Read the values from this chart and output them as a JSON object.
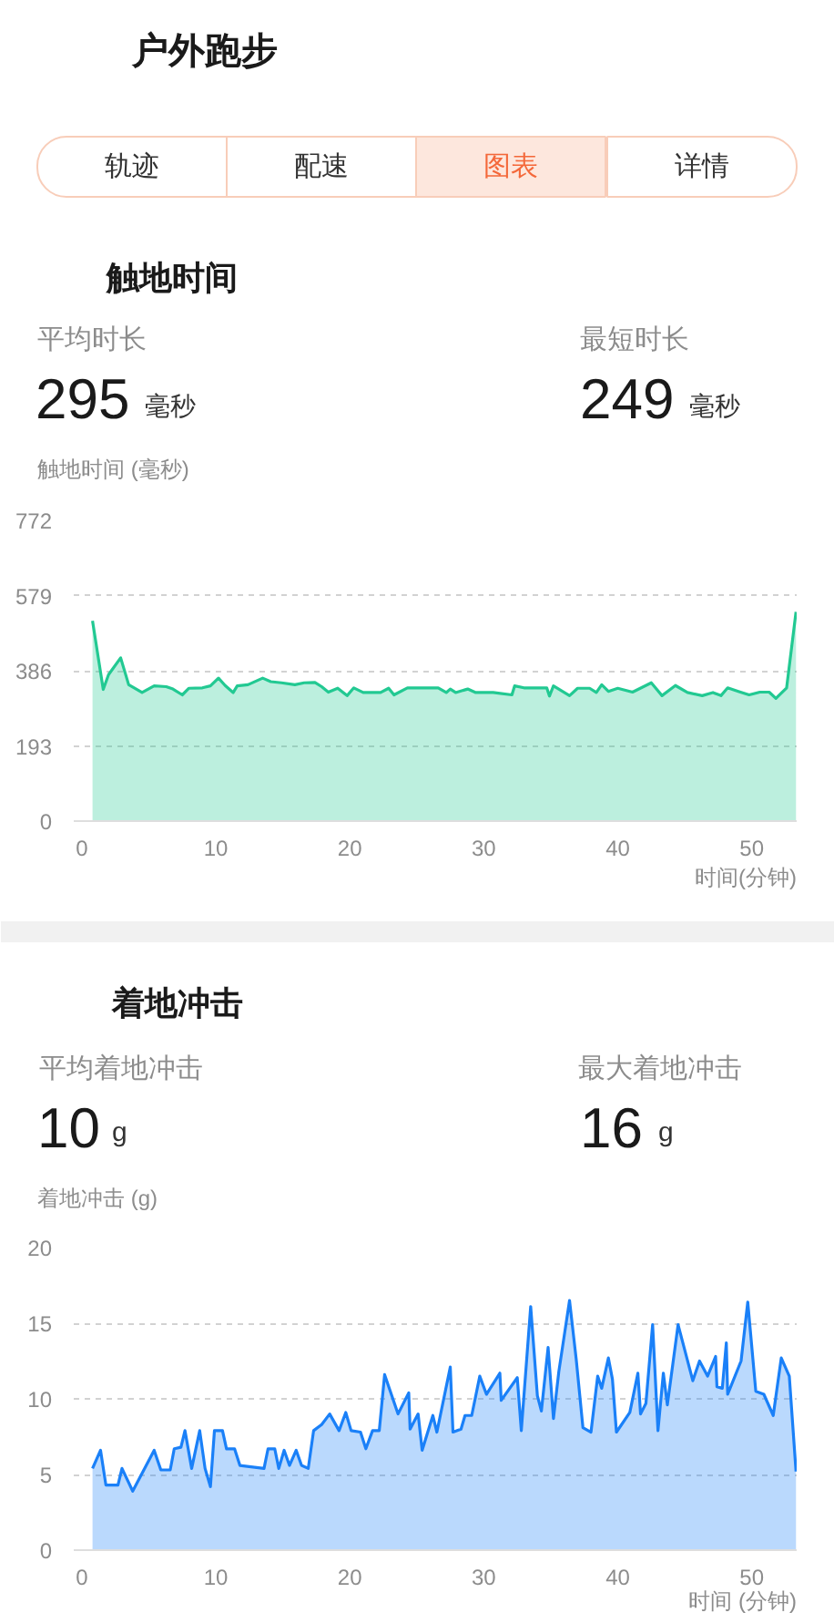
{
  "chart_data": [
    {
      "type": "area",
      "title": "触地时间",
      "ylabel": "触地时间 (毫秒)",
      "xlabel": "时间(分钟)",
      "annotations": [
        "户外跑步",
        "轨迹",
        "配速",
        "图表",
        "详情",
        "平均时长",
        "295",
        "毫秒",
        "最短时长",
        "249",
        "毫秒"
      ],
      "x": [
        0.8,
        1.6,
        2.0,
        2.9,
        3.5,
        4.5,
        5.4,
        6.3,
        6.8,
        7.5,
        8.0,
        9.0,
        9.6,
        10.2,
        10.7,
        11.3,
        11.6,
        12.4,
        13.5,
        14.1,
        14.9,
        15.9,
        16.6,
        17.4,
        17.9,
        18.4,
        19.1,
        19.8,
        20.3,
        21.0,
        22.3,
        22.9,
        23.3,
        24.3,
        25.7,
        26.6,
        27.2,
        27.5,
        27.9,
        28.8,
        29.4,
        30.7,
        32.1,
        32.3,
        33.0,
        34.7,
        34.9,
        35.2,
        36.4,
        37.0,
        37.9,
        38.4,
        38.8,
        39.3,
        40.0,
        41.1,
        42.5,
        43.3,
        44.3,
        45.2,
        46.3,
        47.1,
        47.7,
        48.2,
        49.0,
        49.8,
        50.6,
        51.3,
        51.8,
        52.6,
        53.3
      ],
      "values": [
        514,
        338,
        376,
        419,
        350,
        330,
        347,
        345,
        339,
        324,
        341,
        342,
        347,
        367,
        348,
        330,
        347,
        350,
        367,
        358,
        355,
        350,
        355,
        356,
        345,
        331,
        341,
        322,
        342,
        330,
        330,
        341,
        324,
        342,
        342,
        342,
        330,
        339,
        330,
        339,
        330,
        330,
        324,
        347,
        342,
        342,
        321,
        347,
        322,
        341,
        341,
        330,
        350,
        333,
        341,
        331,
        355,
        322,
        348,
        330,
        322,
        330,
        322,
        342,
        333,
        324,
        331,
        331,
        315,
        342,
        537
      ],
      "color": "#22c992",
      "xlim": [
        -0.6,
        53.35
      ],
      "xticks": [
        0,
        10,
        20,
        30,
        40,
        50
      ],
      "ylim": [
        0,
        772
      ],
      "yticks": [
        0,
        193,
        386,
        579,
        772
      ],
      "grid": "y"
    },
    {
      "type": "area",
      "title": "着地冲击",
      "ylabel": "着地冲击 (g)",
      "xlabel": "时间 (分钟)",
      "annotations": [
        "平均着地冲击",
        "10",
        "g",
        "最大着地冲击",
        "16",
        "g"
      ],
      "x": [
        0.8,
        1.4,
        1.8,
        2.7,
        3.0,
        3.8,
        5.4,
        5.9,
        6.6,
        6.9,
        7.4,
        7.7,
        8.2,
        8.8,
        9.2,
        9.6,
        9.9,
        10.5,
        10.8,
        11.4,
        11.8,
        13.6,
        13.9,
        14.4,
        14.7,
        15.1,
        15.5,
        16.0,
        16.4,
        16.9,
        17.3,
        17.9,
        18.5,
        19.2,
        19.7,
        20.1,
        20.8,
        21.2,
        21.7,
        22.2,
        22.6,
        23.6,
        24.4,
        24.5,
        25.1,
        25.4,
        26.2,
        26.5,
        27.5,
        27.7,
        28.3,
        28.6,
        29.1,
        29.7,
        30.2,
        31.2,
        31.3,
        32.5,
        32.8,
        33.5,
        34.0,
        34.3,
        34.8,
        35.2,
        35.6,
        36.4,
        36.9,
        37.4,
        38.0,
        38.5,
        38.8,
        39.3,
        39.6,
        39.9,
        40.9,
        41.5,
        41.7,
        42.1,
        42.6,
        43.0,
        43.4,
        43.7,
        44.5,
        45.6,
        46.1,
        46.7,
        47.3,
        47.4,
        47.8,
        48.1,
        48.2,
        49.2,
        49.7,
        50.3,
        50.9,
        51.6,
        52.2,
        52.8,
        53.3
      ],
      "values": [
        5.4,
        6.6,
        4.3,
        4.3,
        5.4,
        3.9,
        6.6,
        5.3,
        5.3,
        6.7,
        6.8,
        7.9,
        5.4,
        7.9,
        5.4,
        4.2,
        7.9,
        7.9,
        6.7,
        6.7,
        5.6,
        5.4,
        6.7,
        6.7,
        5.4,
        6.6,
        5.6,
        6.6,
        5.6,
        5.4,
        7.9,
        8.3,
        9.0,
        7.9,
        9.1,
        7.9,
        7.8,
        6.7,
        7.9,
        7.9,
        11.6,
        9.0,
        10.4,
        8.0,
        9.0,
        6.6,
        8.9,
        7.8,
        12.1,
        7.8,
        8.0,
        8.9,
        8.9,
        11.5,
        10.3,
        11.7,
        9.9,
        11.4,
        7.9,
        16.1,
        10.2,
        9.2,
        13.4,
        8.7,
        11.8,
        16.5,
        12.6,
        8.1,
        7.8,
        11.5,
        10.7,
        12.7,
        11.3,
        7.8,
        9.1,
        11.7,
        9.0,
        9.7,
        14.9,
        7.9,
        11.7,
        9.6,
        14.9,
        11.2,
        12.5,
        11.5,
        12.8,
        10.8,
        10.7,
        13.7,
        10.3,
        12.5,
        16.4,
        10.5,
        10.3,
        8.9,
        12.7,
        11.5,
        5.2
      ],
      "color": "#1a80f8",
      "xlim": [
        -0.6,
        53.35
      ],
      "xticks": [
        0,
        10,
        20,
        30,
        40,
        50
      ],
      "ylim": [
        0,
        20
      ],
      "yticks": [
        0,
        5,
        10,
        15,
        20
      ],
      "grid": "y"
    }
  ]
}
